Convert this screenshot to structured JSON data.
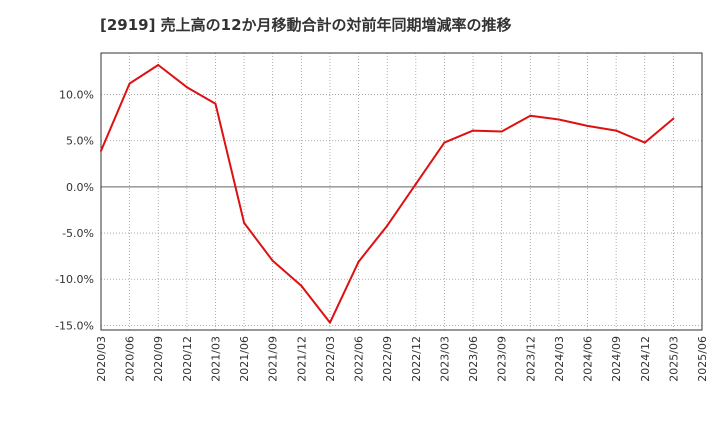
{
  "chart_data": {
    "type": "line",
    "title": "[2919]  売上高の12か月移動合計の対前年同期増減率の推移",
    "xlabel": "",
    "ylabel": "",
    "ylim": [
      -15.5,
      14.5
    ],
    "yticks": [
      10,
      5,
      0,
      -5,
      -10,
      -15
    ],
    "ytick_labels": [
      "10.0%",
      "5.0%",
      "0.0%",
      "-5.0%",
      "-10.0%",
      "-15.0%"
    ],
    "categories": [
      "2020/03",
      "2020/06",
      "2020/09",
      "2020/12",
      "2021/03",
      "2021/06",
      "2021/09",
      "2021/12",
      "2022/03",
      "2022/06",
      "2022/09",
      "2022/12",
      "2023/03",
      "2023/06",
      "2023/09",
      "2023/12",
      "2024/03",
      "2024/06",
      "2024/09",
      "2024/12",
      "2025/03",
      "2025/06"
    ],
    "series": [
      {
        "name": "増減率",
        "color": "#dd1111",
        "values": [
          3.9,
          11.2,
          13.2,
          10.8,
          9.0,
          -3.9,
          -8.0,
          -10.7,
          -14.7,
          -8.1,
          -4.2,
          0.3,
          4.8,
          6.1,
          6.0,
          7.7,
          7.3,
          6.6,
          6.1,
          4.8,
          7.4,
          null
        ]
      }
    ],
    "grid": true
  }
}
